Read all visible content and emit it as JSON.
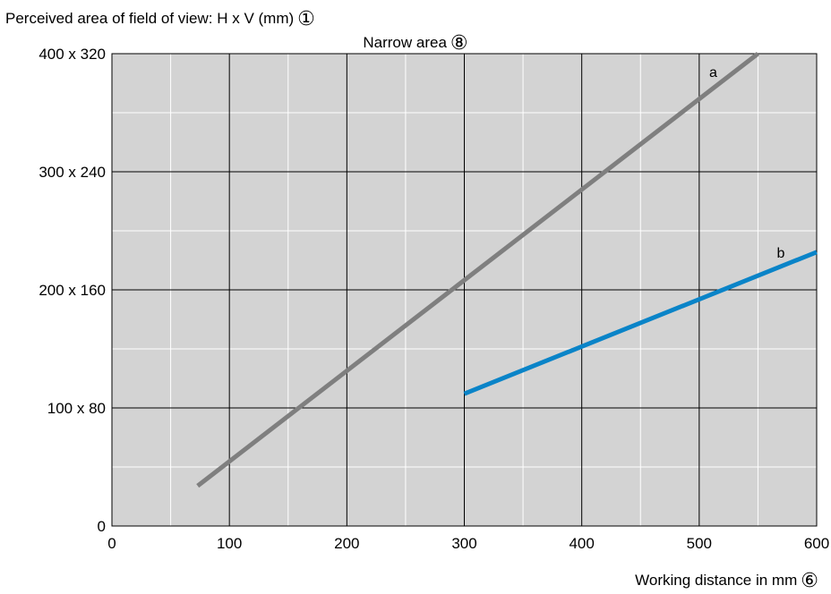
{
  "chart_data": {
    "type": "line",
    "title": "Narrow area",
    "title_marker": "⑧",
    "ylabel": "Perceived area of field of view: H x V (mm)",
    "ylabel_marker": "①",
    "xlabel": "Working distance in mm",
    "xlabel_marker": "⑥",
    "xlim": [
      0,
      600
    ],
    "ylim": [
      0,
      400
    ],
    "x_ticks": [
      0,
      100,
      200,
      300,
      400,
      500,
      600
    ],
    "x_tick_labels": [
      "0",
      "100",
      "200",
      "300",
      "400",
      "500",
      "600"
    ],
    "y_ticks": [
      0,
      100,
      200,
      300,
      400
    ],
    "y_tick_labels": [
      "0",
      "100 x 80",
      "200 x 160",
      "300 x 240",
      "400 x 320"
    ],
    "grid": true,
    "series": [
      {
        "name": "a",
        "color": "#7f7f7f",
        "x": [
          73,
          550
        ],
        "y": [
          34,
          400
        ]
      },
      {
        "name": "b",
        "color": "#0a84c8",
        "x": [
          300,
          600
        ],
        "y": [
          112,
          232
        ]
      }
    ]
  }
}
